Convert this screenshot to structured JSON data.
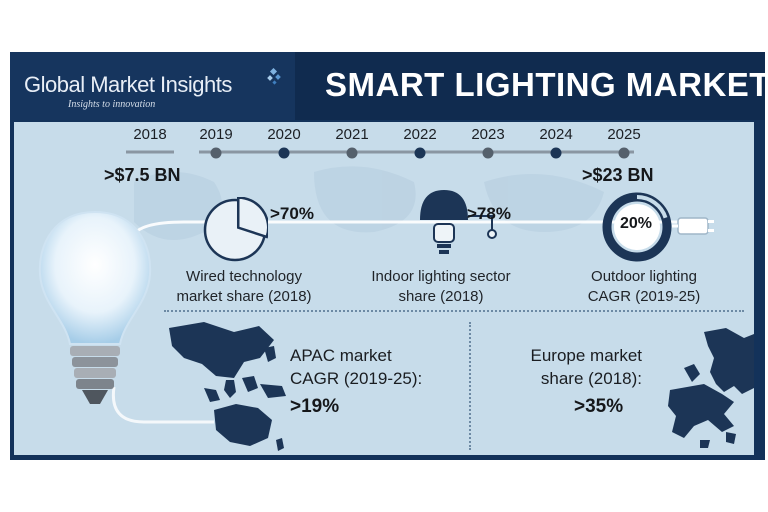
{
  "header": {
    "logo_text": "Global Market Insights",
    "logo_tagline": "Insights to innovation",
    "title": "SMART LIGHTING MARKET"
  },
  "timeline": {
    "years": [
      "2018",
      "2019",
      "2020",
      "2021",
      "2022",
      "2023",
      "2024",
      "2025"
    ],
    "start_value": ">$7.5 BN",
    "end_value": ">$23 BN"
  },
  "stats": {
    "wired": {
      "value": ">70%",
      "label_line1": "Wired technology",
      "label_line2": "market share (2018)",
      "pie_share": 0.7
    },
    "indoor": {
      "value": ">78%",
      "label_line1": "Indoor lighting sector",
      "label_line2": "share (2018)"
    },
    "outdoor": {
      "value": "20%",
      "label_line1": "Outdoor lighting",
      "label_line2": "CAGR (2019-25)",
      "ring_share": 0.2
    }
  },
  "regions": {
    "apac": {
      "line1": "APAC market",
      "line2": "CAGR (2019-25):",
      "value": ">19%"
    },
    "europe": {
      "line1": "Europe market",
      "line2": "share (2018):",
      "value": ">35%"
    }
  },
  "colors": {
    "navy": "#13325a",
    "panel": "#c7dcea",
    "accent": "#1c3556"
  },
  "icons": [
    "light-bulb-icon",
    "pie-chart-icon",
    "desk-lamp-icon",
    "ring-gauge-icon",
    "plug-icon",
    "asia-pacific-map-icon",
    "europe-map-icon",
    "logo-mark-icon"
  ]
}
